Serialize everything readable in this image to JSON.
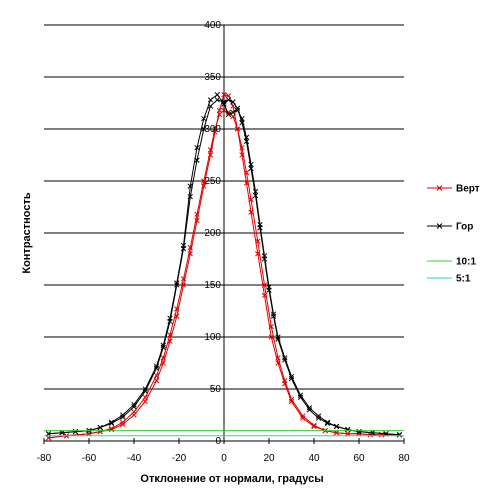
{
  "chart_data": {
    "type": "line",
    "title": "",
    "xlabel": "Отклонение от нормали, градусы",
    "ylabel": "Контрастность",
    "xlim": [
      -80,
      80
    ],
    "ylim": [
      0,
      400
    ],
    "xticks": [
      -80,
      -60,
      -40,
      -20,
      0,
      20,
      40,
      60,
      80
    ],
    "yticks": [
      0,
      50,
      100,
      150,
      200,
      250,
      300,
      350,
      400
    ],
    "grid": "horizontal",
    "legend_position": "right",
    "series": [
      {
        "name": "Верт",
        "color": "#e00000",
        "marker": "x",
        "lines": [
          [
            [
              -78,
              3
            ],
            [
              -70,
              5
            ],
            [
              -60,
              7
            ],
            [
              -55,
              9
            ],
            [
              -50,
              11
            ],
            [
              -45,
              16
            ],
            [
              -40,
              25
            ],
            [
              -35,
              38
            ],
            [
              -30,
              58
            ],
            [
              -27,
              75
            ],
            [
              -24,
              96
            ],
            [
              -21,
              120
            ],
            [
              -18,
              150
            ],
            [
              -15,
              180
            ],
            [
              -12,
              212
            ],
            [
              -9,
              245
            ],
            [
              -6,
              275
            ],
            [
              -4,
              297
            ],
            [
              -2,
              318
            ],
            [
              0,
              333
            ],
            [
              2,
              332
            ],
            [
              4,
              322
            ],
            [
              6,
              300
            ],
            [
              8,
              275
            ],
            [
              10,
              248
            ],
            [
              12,
              220
            ],
            [
              15,
              180
            ],
            [
              18,
              140
            ],
            [
              21,
              100
            ],
            [
              24,
              75
            ],
            [
              27,
              55
            ],
            [
              30,
              38
            ],
            [
              35,
              22
            ],
            [
              40,
              14
            ],
            [
              45,
              10
            ],
            [
              50,
              8
            ],
            [
              55,
              7
            ],
            [
              60,
              7
            ],
            [
              65,
              6
            ],
            [
              70,
              6
            ],
            [
              78,
              6
            ]
          ],
          [
            [
              -78,
              3
            ],
            [
              -70,
              5
            ],
            [
              -60,
              7
            ],
            [
              -55,
              9
            ],
            [
              -50,
              12
            ],
            [
              -45,
              18
            ],
            [
              -40,
              28
            ],
            [
              -35,
              42
            ],
            [
              -30,
              63
            ],
            [
              -27,
              80
            ],
            [
              -24,
              102
            ],
            [
              -21,
              127
            ],
            [
              -18,
              156
            ],
            [
              -15,
              186
            ],
            [
              -12,
              218
            ],
            [
              -9,
              250
            ],
            [
              -6,
              280
            ],
            [
              -4,
              300
            ],
            [
              -2,
              314
            ],
            [
              0,
              318
            ],
            [
              2,
              316
            ],
            [
              4,
              312
            ],
            [
              6,
              300
            ],
            [
              8,
              282
            ],
            [
              10,
              258
            ],
            [
              12,
              232
            ],
            [
              15,
              192
            ],
            [
              18,
              150
            ],
            [
              21,
              110
            ],
            [
              24,
              80
            ],
            [
              27,
              58
            ],
            [
              30,
              40
            ],
            [
              35,
              24
            ],
            [
              40,
              15
            ],
            [
              45,
              10
            ],
            [
              50,
              8
            ],
            [
              55,
              7
            ],
            [
              60,
              7
            ],
            [
              65,
              6
            ],
            [
              70,
              6
            ],
            [
              78,
              6
            ]
          ]
        ]
      },
      {
        "name": "Гор",
        "color": "#000000",
        "marker": "x",
        "lines": [
          [
            [
              -78,
              7
            ],
            [
              -72,
              8
            ],
            [
              -66,
              9
            ],
            [
              -60,
              10
            ],
            [
              -55,
              13
            ],
            [
              -50,
              17
            ],
            [
              -45,
              23
            ],
            [
              -40,
              33
            ],
            [
              -35,
              48
            ],
            [
              -30,
              70
            ],
            [
              -27,
              90
            ],
            [
              -24,
              115
            ],
            [
              -21,
              150
            ],
            [
              -18,
              185
            ],
            [
              -15,
              235
            ],
            [
              -12,
              270
            ],
            [
              -9,
              300
            ],
            [
              -6,
              322
            ],
            [
              -3,
              328
            ],
            [
              0,
              326
            ],
            [
              2,
              328
            ],
            [
              4,
              326
            ],
            [
              6,
              320
            ],
            [
              8,
              306
            ],
            [
              10,
              288
            ],
            [
              12,
              262
            ],
            [
              14,
              236
            ],
            [
              16,
              205
            ],
            [
              18,
              175
            ],
            [
              20,
              145
            ],
            [
              22,
              120
            ],
            [
              24,
              98
            ],
            [
              27,
              78
            ],
            [
              30,
              60
            ],
            [
              34,
              42
            ],
            [
              38,
              30
            ],
            [
              42,
              22
            ],
            [
              46,
              17
            ],
            [
              50,
              14
            ],
            [
              55,
              11
            ],
            [
              60,
              9
            ],
            [
              66,
              8
            ],
            [
              72,
              7
            ],
            [
              78,
              6
            ]
          ],
          [
            [
              -78,
              7
            ],
            [
              -72,
              8
            ],
            [
              -66,
              9
            ],
            [
              -60,
              10
            ],
            [
              -55,
              13
            ],
            [
              -50,
              18
            ],
            [
              -45,
              25
            ],
            [
              -40,
              35
            ],
            [
              -35,
              50
            ],
            [
              -30,
              72
            ],
            [
              -27,
              92
            ],
            [
              -24,
              118
            ],
            [
              -21,
              152
            ],
            [
              -18,
              188
            ],
            [
              -15,
              245
            ],
            [
              -12,
              282
            ],
            [
              -9,
              310
            ],
            [
              -6,
              328
            ],
            [
              -3,
              333
            ],
            [
              0,
              324
            ],
            [
              2,
              314
            ],
            [
              4,
              316
            ],
            [
              6,
              318
            ],
            [
              8,
              310
            ],
            [
              10,
              292
            ],
            [
              12,
              266
            ],
            [
              14,
              240
            ],
            [
              16,
              208
            ],
            [
              18,
              178
            ],
            [
              20,
              148
            ],
            [
              22,
              122
            ],
            [
              24,
              100
            ],
            [
              27,
              80
            ],
            [
              30,
              62
            ],
            [
              34,
              44
            ],
            [
              38,
              32
            ],
            [
              42,
              24
            ],
            [
              46,
              18
            ],
            [
              50,
              14
            ],
            [
              55,
              11
            ],
            [
              60,
              9
            ],
            [
              66,
              8
            ],
            [
              72,
              7
            ],
            [
              78,
              6
            ]
          ]
        ]
      },
      {
        "name": "10:1",
        "color": "#33cc33",
        "marker": "none",
        "lines": [
          [
            [
              -80,
              10
            ],
            [
              80,
              10
            ]
          ]
        ]
      },
      {
        "name": "5:1",
        "color": "#33cccc",
        "marker": "none",
        "lines": [
          [
            [
              -80,
              5
            ],
            [
              80,
              5
            ]
          ]
        ]
      }
    ]
  }
}
